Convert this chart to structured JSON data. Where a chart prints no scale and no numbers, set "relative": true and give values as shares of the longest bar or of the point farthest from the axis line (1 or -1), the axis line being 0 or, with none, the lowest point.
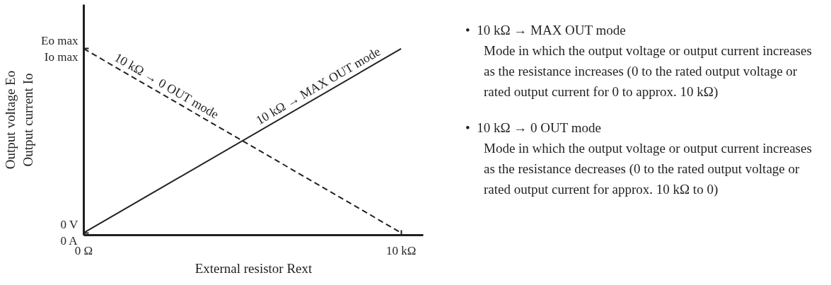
{
  "chart_data": {
    "type": "line",
    "xlabel": "External resistor Rext",
    "ylabel": "Output voltage Eo\nOutput current Io",
    "x": [
      0,
      10
    ],
    "xlim": [
      0,
      10.7
    ],
    "xticks": [
      {
        "value": 0,
        "label": "0 Ω"
      },
      {
        "value": 10,
        "label": "10 kΩ"
      }
    ],
    "relative": true,
    "grid": false,
    "series": [
      {
        "color": "#231f20",
        "values": [
          0,
          1
        ],
        "line_style": "solid"
      },
      {
        "color": "#231f20",
        "values": [
          1,
          0
        ],
        "line_style": "dashed"
      }
    ],
    "annotations": [
      {
        "text": "Eo max\nIo max",
        "x": 0,
        "y": 1
      },
      {
        "text": "0 V\n0 A",
        "x": 0,
        "y": 0
      },
      {
        "text": "10 kΩ → MAX OUT mode",
        "x": 7.5,
        "y": 0.75
      },
      {
        "text": "10 kΩ → 0 OUT mode",
        "x": 2.5,
        "y": 0.75
      },
      "•  10 kΩ → MAX OUT mode",
      "Mode in which the output voltage or output current increases as the resistance increases (0 to the rated output voltage or rated output current for 0 to approx. 10 kΩ)",
      "•  10 kΩ → 0 OUT mode",
      "Mode in which the output voltage or output current increases as the resistance decreases (0 to the rated output voltage or rated output current for approx. 10 kΩ to 0)"
    ]
  }
}
